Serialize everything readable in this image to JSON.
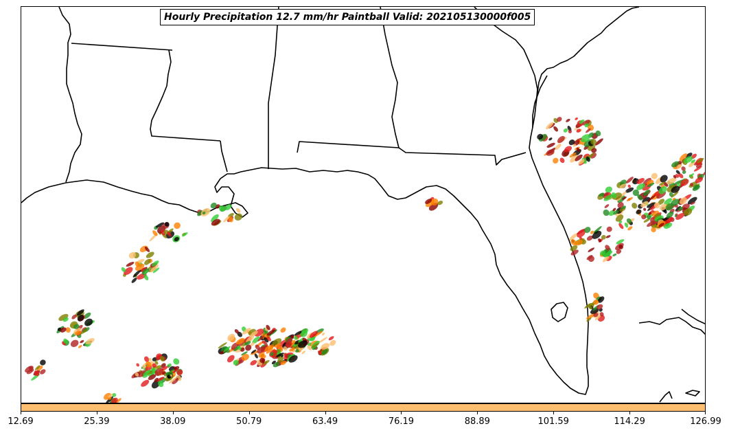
{
  "title": "Hourly Precipitation 12.7 mm/hr Paintball Valid: 202105130000f005",
  "colorbar": {
    "color": "#fdbf6f",
    "tick_labels": [
      "12.69",
      "25.39",
      "38.09",
      "50.79",
      "63.49",
      "76.19",
      "88.89",
      "101.59",
      "114.29",
      "126.99"
    ]
  },
  "map": {
    "region": "US Gulf Coast and Florida",
    "features": [
      "coastlines",
      "state boundaries"
    ],
    "paintball_colors": [
      "#e31a1c",
      "#ff7f00",
      "#fdbf6f",
      "#33cc33",
      "#808000",
      "#8b0000",
      "#b22222",
      "#000000",
      "#228b22"
    ]
  }
}
